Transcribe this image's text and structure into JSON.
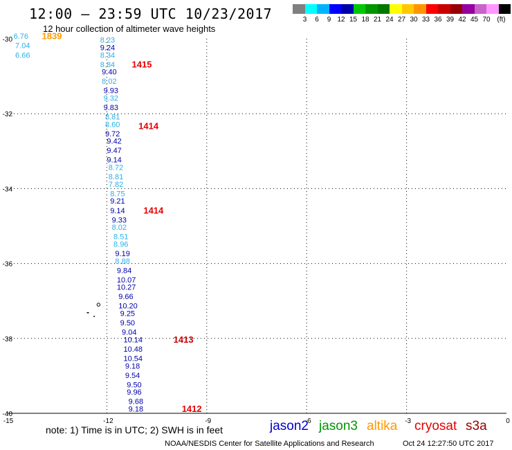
{
  "header": {
    "title": "12:00 — 23:59 UTC 10/23/2017",
    "subtitle": "12 hour collection of altimeter wave heights"
  },
  "legend": {
    "colors": [
      "#808080",
      "#00ffff",
      "#00b4ff",
      "#0000ff",
      "#0000aa",
      "#00c800",
      "#009600",
      "#007800",
      "#ffff00",
      "#ffc800",
      "#ff9600",
      "#ff0000",
      "#c80000",
      "#960000",
      "#9600a0",
      "#c864c8",
      "#ff96ff",
      "#000000"
    ],
    "labels": [
      "3",
      "6",
      "9",
      "12",
      "15",
      "18",
      "21",
      "24",
      "27",
      "30",
      "33",
      "36",
      "39",
      "42",
      "45",
      "70",
      "(ft)"
    ]
  },
  "axes": {
    "x_ticks": [
      "-15",
      "-12",
      "-9",
      "-6",
      "-3",
      "0"
    ],
    "y_ticks": [
      "-30",
      "-32",
      "-34",
      "-36",
      "-38",
      "-40"
    ]
  },
  "observations": [
    {
      "lon": -14.8,
      "lat": -29.95,
      "value": "6.76",
      "color": "#2ab0e6"
    },
    {
      "lon": -14.75,
      "lat": -30.2,
      "value": "7.04",
      "color": "#2ab0e6"
    },
    {
      "lon": -14.75,
      "lat": -30.45,
      "value": "6.66",
      "color": "#2ab0e6"
    },
    {
      "lon": -12.2,
      "lat": -30.05,
      "value": "8.23",
      "color": "#2ab0e6"
    },
    {
      "lon": -12.2,
      "lat": -30.25,
      "value": "9.24",
      "color": "#0000aa"
    },
    {
      "lon": -12.2,
      "lat": -30.45,
      "value": "8.34",
      "color": "#2ab0e6"
    },
    {
      "lon": -12.2,
      "lat": -30.7,
      "value": "8.84",
      "color": "#2ab0e6"
    },
    {
      "lon": -12.15,
      "lat": -30.9,
      "value": "9.40",
      "color": "#0000aa"
    },
    {
      "lon": -12.15,
      "lat": -31.15,
      "value": "8.02",
      "color": "#2ab0e6"
    },
    {
      "lon": -12.1,
      "lat": -31.4,
      "value": "9.93",
      "color": "#0000aa"
    },
    {
      "lon": -12.1,
      "lat": -31.6,
      "value": "9.32",
      "color": "#2ab0e6"
    },
    {
      "lon": -12.1,
      "lat": -31.85,
      "value": "9.83",
      "color": "#0000aa"
    },
    {
      "lon": -12.05,
      "lat": -32.1,
      "value": "8.81",
      "color": "#2ab0e6"
    },
    {
      "lon": -12.05,
      "lat": -32.3,
      "value": "8.60",
      "color": "#2ab0e6"
    },
    {
      "lon": -12.05,
      "lat": -32.55,
      "value": "9.72",
      "color": "#0000aa"
    },
    {
      "lon": -12.0,
      "lat": -32.75,
      "value": "9.42",
      "color": "#0000aa"
    },
    {
      "lon": -12.0,
      "lat": -33.0,
      "value": "9.47",
      "color": "#0000aa"
    },
    {
      "lon": -12.0,
      "lat": -33.25,
      "value": "9.14",
      "color": "#0000aa"
    },
    {
      "lon": -11.95,
      "lat": -33.45,
      "value": "8.72",
      "color": "#2ab0e6"
    },
    {
      "lon": -11.95,
      "lat": -33.7,
      "value": "8.81",
      "color": "#2ab0e6"
    },
    {
      "lon": -11.95,
      "lat": -33.9,
      "value": "7.82",
      "color": "#2ab0e6"
    },
    {
      "lon": -11.9,
      "lat": -34.15,
      "value": "8.75",
      "color": "#2ab0e6"
    },
    {
      "lon": -11.9,
      "lat": -34.35,
      "value": "9.21",
      "color": "#0000aa"
    },
    {
      "lon": -11.9,
      "lat": -34.6,
      "value": "9.14",
      "color": "#0000aa"
    },
    {
      "lon": -11.85,
      "lat": -34.85,
      "value": "9.33",
      "color": "#0000aa"
    },
    {
      "lon": -11.85,
      "lat": -35.05,
      "value": "8.02",
      "color": "#2ab0e6"
    },
    {
      "lon": -11.8,
      "lat": -35.3,
      "value": "8.51",
      "color": "#2ab0e6"
    },
    {
      "lon": -11.8,
      "lat": -35.5,
      "value": "8.96",
      "color": "#2ab0e6"
    },
    {
      "lon": -11.75,
      "lat": -35.75,
      "value": "9.19",
      "color": "#0000aa"
    },
    {
      "lon": -11.75,
      "lat": -35.95,
      "value": "8.88",
      "color": "#2ab0e6"
    },
    {
      "lon": -11.7,
      "lat": -36.2,
      "value": "9.84",
      "color": "#0000aa"
    },
    {
      "lon": -11.7,
      "lat": -36.45,
      "value": "10.07",
      "color": "#0000aa"
    },
    {
      "lon": -11.7,
      "lat": -36.65,
      "value": "10.27",
      "color": "#0000aa"
    },
    {
      "lon": -11.65,
      "lat": -36.9,
      "value": "9.66",
      "color": "#0000aa"
    },
    {
      "lon": -11.65,
      "lat": -37.15,
      "value": "10.20",
      "color": "#0000aa"
    },
    {
      "lon": -11.6,
      "lat": -37.35,
      "value": "9.25",
      "color": "#0000aa"
    },
    {
      "lon": -11.6,
      "lat": -37.6,
      "value": "9.50",
      "color": "#0000aa"
    },
    {
      "lon": -11.55,
      "lat": -37.85,
      "value": "9.04",
      "color": "#0000aa"
    },
    {
      "lon": -11.5,
      "lat": -38.05,
      "value": "10.14",
      "color": "#0000aa"
    },
    {
      "lon": -11.5,
      "lat": -38.3,
      "value": "10.48",
      "color": "#0000aa"
    },
    {
      "lon": -11.5,
      "lat": -38.55,
      "value": "10.54",
      "color": "#0000aa"
    },
    {
      "lon": -11.45,
      "lat": -38.75,
      "value": "9.18",
      "color": "#0000aa"
    },
    {
      "lon": -11.45,
      "lat": -39.0,
      "value": "9.54",
      "color": "#0000aa"
    },
    {
      "lon": -11.4,
      "lat": -39.25,
      "value": "9.50",
      "color": "#0000aa"
    },
    {
      "lon": -11.4,
      "lat": -39.45,
      "value": "9.96",
      "color": "#0000aa"
    },
    {
      "lon": -11.35,
      "lat": -39.7,
      "value": "9.68",
      "color": "#0000aa"
    },
    {
      "lon": -11.35,
      "lat": -39.9,
      "value": "9.18",
      "color": "#0000aa"
    }
  ],
  "time_labels": [
    {
      "lon": -13.95,
      "lat": -29.95,
      "text": "1839",
      "color": "#ff9a00"
    },
    {
      "lon": -11.25,
      "lat": -30.7,
      "text": "1415",
      "color": "#e60000"
    },
    {
      "lon": -11.05,
      "lat": -32.35,
      "text": "1414",
      "color": "#e60000"
    },
    {
      "lon": -10.9,
      "lat": -34.6,
      "text": "1414",
      "color": "#e60000"
    },
    {
      "lon": -10.0,
      "lat": -38.05,
      "text": "1413",
      "color": "#cc0000"
    },
    {
      "lon": -9.75,
      "lat": -39.9,
      "text": "1412",
      "color": "#e60000"
    }
  ],
  "satellites": [
    {
      "name": "jason2",
      "color": "#0000cc"
    },
    {
      "name": "jason3",
      "color": "#009600"
    },
    {
      "name": "altika",
      "color": "#ff9a00"
    },
    {
      "name": "cryosat",
      "color": "#e60000"
    },
    {
      "name": "s3a",
      "color": "#960000"
    }
  ],
  "footer": {
    "note": "note:  1) Time is in UTC;  2) SWH is in feet",
    "credit": "NOAA/NESDIS Center for Satellite Applications and Research",
    "timestamp": "Oct 24 12:27:50 UTC 2017"
  }
}
